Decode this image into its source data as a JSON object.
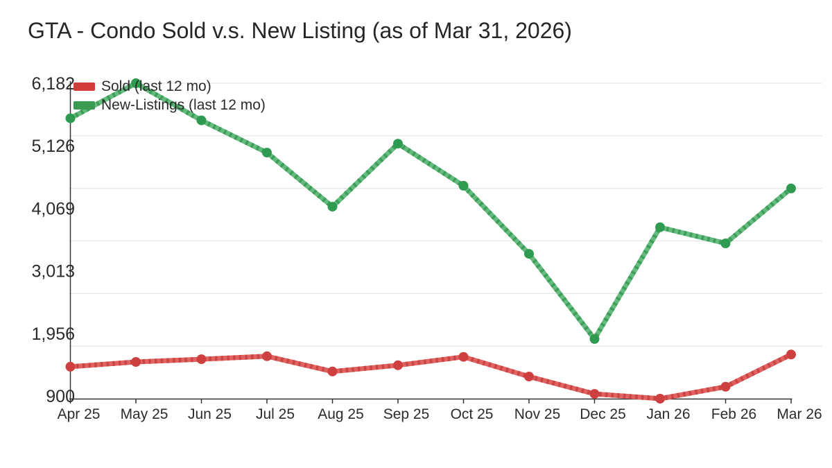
{
  "title": "GTA - Condo Sold v.s. New Listing (as of Mar 31, 2026)",
  "legend": {
    "items": [
      {
        "id": "sold",
        "label": "Sold (last 12 mo)",
        "color": "#d23b39"
      },
      {
        "id": "new-listings",
        "label": "New-Listings (last 12 mo)",
        "color": "#3a9b51"
      }
    ]
  },
  "axes": {
    "y_labels": [
      "900",
      "1,956",
      "3,013",
      "4,069",
      "5,126",
      "6,182"
    ],
    "grid_color": "#e7e7e7",
    "axis_color": "#333333",
    "label_color": "#2b2b2b"
  },
  "chart_data": {
    "type": "line",
    "title": "GTA - Condo Sold v.s. New Listing (as of Mar 31, 2026)",
    "categories": [
      "Apr 25",
      "May 25",
      "Jun 25",
      "Jul 25",
      "Aug 25",
      "Sep 25",
      "Oct 25",
      "Nov 25",
      "Dec 25",
      "Jan 26",
      "Feb 26",
      "Mar 26"
    ],
    "series": [
      {
        "id": "sold",
        "name": "Sold (last 12 mo)",
        "values": [
          1435,
          1515,
          1560,
          1610,
          1355,
          1460,
          1600,
          1270,
          980,
          900,
          1100,
          1640
        ],
        "line_color": "#e06361",
        "hatch_color": "#cb4544",
        "point_color": "#ce403f"
      },
      {
        "id": "new-listings",
        "name": "New-Listings (last 12 mo)",
        "values": [
          5595,
          6182,
          5560,
          5020,
          4115,
          5170,
          4465,
          3325,
          1900,
          3770,
          3500,
          4420
        ],
        "line_color": "#66bb80",
        "hatch_color": "#3d9e58",
        "point_color": "#2f9b51"
      }
    ],
    "ylim": [
      900,
      6182
    ],
    "yticks": [
      900,
      1956,
      3013,
      4069,
      5126,
      6182
    ],
    "xlabel": "",
    "ylabel": "",
    "grid": "horizontal",
    "legend_position": "top-left"
  }
}
